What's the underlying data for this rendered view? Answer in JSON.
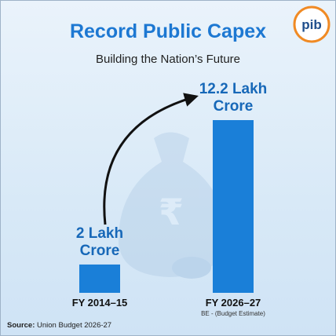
{
  "chart_data": {
    "type": "bar",
    "title": "Record Public Capex",
    "subtitle": "Building the Nation’s Future",
    "categories": [
      "FY 2014–15",
      "FY 2026–27"
    ],
    "values": [
      2,
      12.2
    ],
    "value_labels": [
      "2 Lakh Crore",
      "12.2 Lakh Crore"
    ],
    "color": "#1a7fd8",
    "note": "BE - (Budget Estimate)",
    "source_label": "Source:",
    "source": "Union Budget 2026-27",
    "logo": "pib"
  }
}
